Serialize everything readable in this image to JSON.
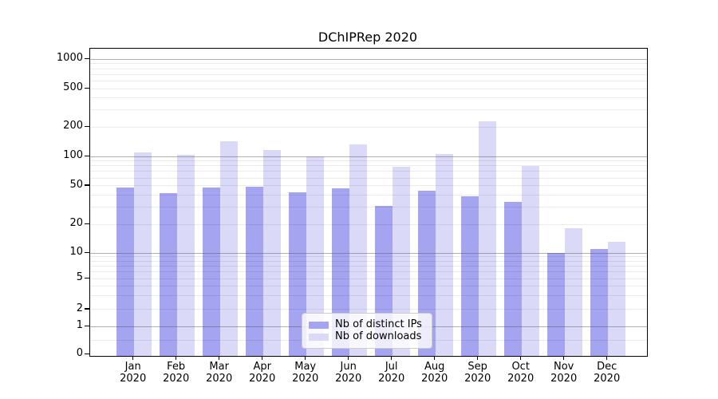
{
  "chart_data": {
    "type": "bar",
    "title": "DChIPRep 2020",
    "months": [
      "Jan",
      "Feb",
      "Mar",
      "Apr",
      "May",
      "Jun",
      "Jul",
      "Aug",
      "Sep",
      "Oct",
      "Nov",
      "Dec"
    ],
    "year": "2020",
    "series": [
      {
        "name": "Nb of distinct IPs",
        "color": "#a4a4f0",
        "values": [
          48,
          42,
          48,
          49,
          43,
          47,
          31,
          44,
          39,
          34,
          10,
          11
        ]
      },
      {
        "name": "Nb of downloads",
        "color": "#dadaf8",
        "values": [
          110,
          104,
          144,
          116,
          100,
          133,
          78,
          105,
          230,
          80,
          18,
          13
        ]
      }
    ],
    "yticks": [
      0,
      1,
      2,
      5,
      10,
      20,
      50,
      100,
      200,
      500,
      1000
    ],
    "major_gridline_values": [
      1,
      10,
      100,
      1000
    ],
    "minor_gridline_values": [
      0.5,
      2,
      3,
      4,
      5,
      6,
      7,
      8,
      9,
      20,
      30,
      40,
      50,
      60,
      70,
      80,
      90,
      200,
      300,
      400,
      500,
      600,
      700,
      800,
      900
    ],
    "yscale": "log above 1, linear 0-1",
    "ylim": [
      0,
      1400
    ],
    "grid": true,
    "legend_position": "lower center",
    "colors": {
      "major_grid": "#b1b1b1",
      "minor_grid": "#ebebeb",
      "axis": "#000000",
      "legend_border": "#cccccc"
    }
  }
}
